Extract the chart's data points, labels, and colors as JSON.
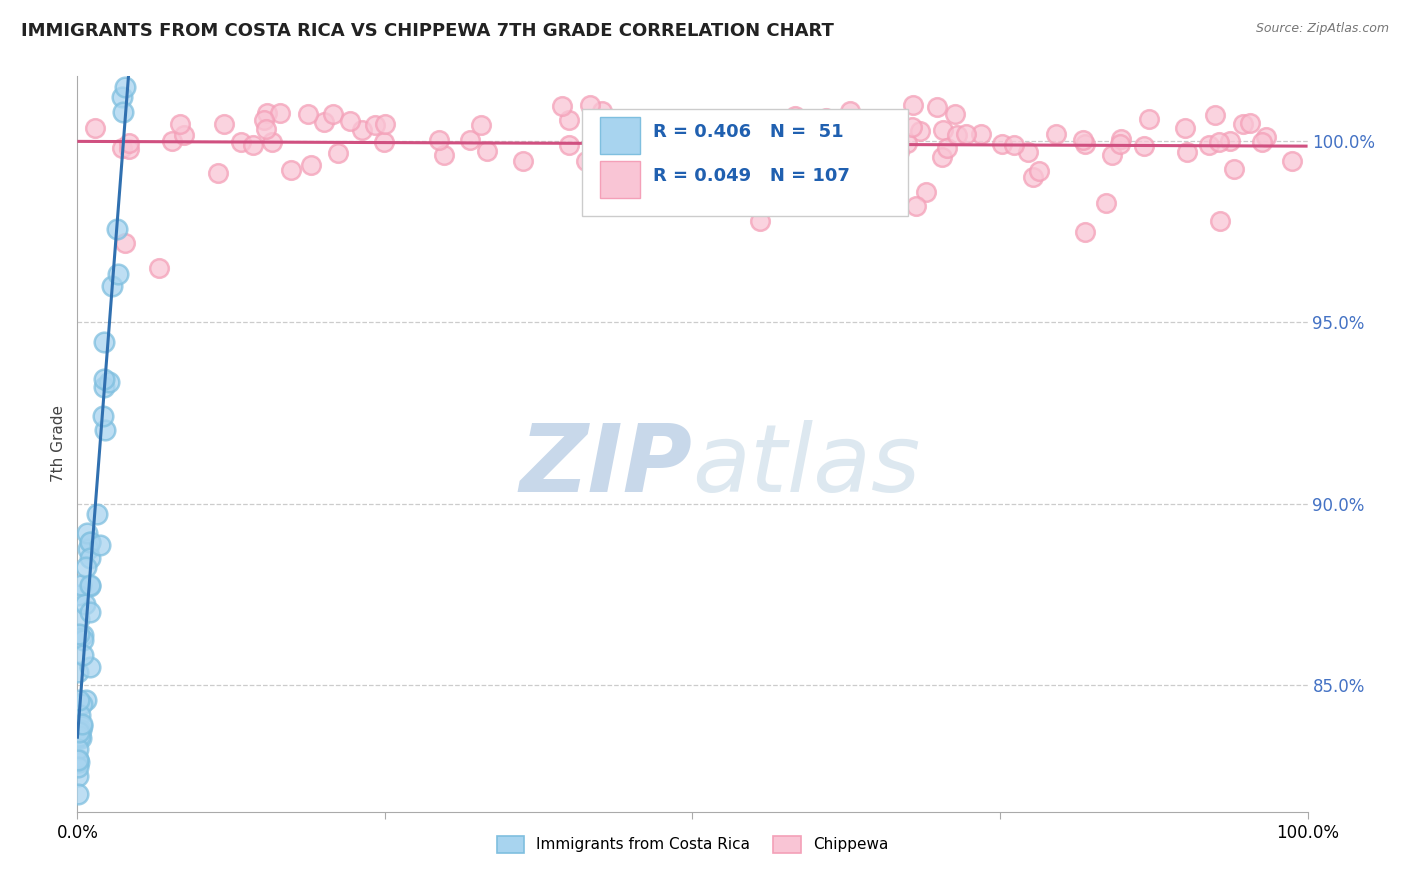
{
  "title": "IMMIGRANTS FROM COSTA RICA VS CHIPPEWA 7TH GRADE CORRELATION CHART",
  "source_text": "Source: ZipAtlas.com",
  "ylabel": "7th Grade",
  "right_yticks": [
    85.0,
    90.0,
    95.0,
    100.0
  ],
  "xmin": 0.0,
  "xmax": 100.0,
  "ymin": 81.5,
  "ymax": 101.8,
  "legend_label1": "Immigrants from Costa Rica",
  "legend_label2": "Chippewa",
  "blue_color": "#7fbfdf",
  "pink_color": "#f4a0b8",
  "blue_fill_color": "#a8d4ef",
  "pink_fill_color": "#f9c5d5",
  "blue_line_color": "#3070b0",
  "pink_line_color": "#d05080",
  "watermark_zip": "ZIP",
  "watermark_atlas": "atlas",
  "watermark_color": "#c8d8ea",
  "background_color": "#ffffff",
  "grid_color": "#cccccc",
  "ytick_color": "#4472c4",
  "title_color": "#222222",
  "source_color": "#777777",
  "legend_text_color": "#2060b0",
  "r1": 0.406,
  "n1": 51,
  "r2": 0.049,
  "n2": 107,
  "blue_dot_size": 200,
  "pink_dot_size": 180,
  "dot_linewidth": 1.8,
  "trend_linewidth": 2.2
}
